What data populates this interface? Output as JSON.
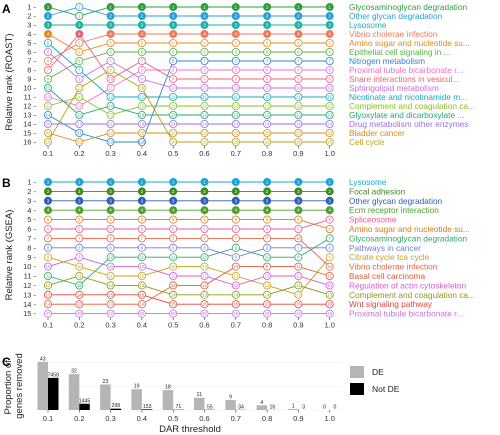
{
  "chart_data": [
    {
      "panel": "A",
      "type": "line",
      "ylabel": "Relative rank (ROAST)",
      "x": [
        "0.1",
        "0.2",
        "0.3",
        "0.4",
        "0.5",
        "0.6",
        "0.7",
        "0.8",
        "0.9",
        "1.0"
      ],
      "y_ticks": [
        "1",
        "2",
        "3",
        "4",
        "5",
        "6",
        "7",
        "8",
        "9",
        "10",
        "11",
        "12",
        "13",
        "14",
        "15",
        "16"
      ],
      "ylim": [
        1,
        16
      ],
      "grid": true,
      "series": [
        {
          "name": "Glycosaminoglycan degradation",
          "color": "#2e9e3e",
          "values": [
            1,
            2,
            1,
            1,
            1,
            1,
            1,
            1,
            1,
            1
          ],
          "labels": [
            1,
            1,
            1,
            1,
            1,
            1,
            1,
            1,
            1,
            1
          ]
        },
        {
          "name": "Other glycan degradation",
          "color": "#2a9fd6",
          "values": [
            2,
            1,
            2,
            2,
            2,
            2,
            2,
            2,
            2,
            2
          ],
          "labels": [
            2,
            2,
            2,
            2,
            2,
            2,
            2,
            2,
            2,
            2
          ]
        },
        {
          "name": "Lysosome",
          "color": "#1eb1a6",
          "values": [
            3,
            3,
            3,
            3,
            3,
            3,
            3,
            3,
            3,
            3
          ],
          "labels": [
            3,
            3,
            3,
            3,
            3,
            3,
            3,
            3,
            3,
            3
          ]
        },
        {
          "name": "Vibrio cholerae infection",
          "color": "#f07a5c",
          "values": [
            7,
            5,
            4,
            4,
            4,
            4,
            4,
            4,
            4,
            4
          ],
          "labels": [
            8,
            5,
            4,
            4,
            4,
            4,
            4,
            4,
            4,
            4
          ]
        },
        {
          "name": "Amino sugar and nucleotide su...",
          "color": "#e88a1a",
          "values": [
            4,
            6,
            5,
            5,
            5,
            5,
            5,
            5,
            5,
            5
          ],
          "labels": [
            4,
            6,
            5,
            5,
            5,
            5,
            5,
            5,
            5,
            5
          ]
        },
        {
          "name": "Epithelial cell signaling in ...",
          "color": "#55b33d",
          "values": [
            9,
            7,
            6,
            6,
            6,
            6,
            6,
            6,
            6,
            6
          ],
          "labels": [
            9,
            8,
            6,
            6,
            6,
            6,
            6,
            6,
            6,
            6
          ]
        },
        {
          "name": "Nitrogen metabolism",
          "color": "#2d86c9",
          "values": [
            13,
            15,
            16,
            16,
            7,
            7,
            7,
            7,
            7,
            7
          ],
          "labels": [
            14,
            31,
            53,
            129,
            6,
            7,
            7,
            7,
            7,
            7
          ]
        },
        {
          "name": "Proximal tubule bicarbonate r...",
          "color": "#ef6fd0",
          "values": [
            11,
            12,
            10,
            8,
            8,
            8,
            8,
            8,
            8,
            8
          ],
          "labels": [
            10,
            11,
            11,
            9,
            8,
            8,
            8,
            8,
            8,
            8
          ]
        },
        {
          "name": "Snare interactions in vesicul...",
          "color": "#e8647c",
          "values": [
            8,
            4,
            9,
            7,
            9,
            9,
            9,
            9,
            9,
            9
          ],
          "labels": [
            7,
            4,
            10,
            7,
            9,
            9,
            9,
            9,
            9,
            9
          ]
        },
        {
          "name": "Sphingolipid metabolism",
          "color": "#c56fe3",
          "values": [
            6,
            9,
            7,
            9,
            10,
            10,
            10,
            10,
            10,
            10
          ],
          "labels": [
            6,
            9,
            7,
            8,
            10,
            10,
            10,
            10,
            10,
            10
          ]
        },
        {
          "name": "Nicotinate and nicotinamide m...",
          "color": "#1aa8b8",
          "values": [
            5,
            8,
            11,
            11,
            11,
            11,
            11,
            11,
            11,
            11
          ],
          "labels": [
            5,
            7,
            12,
            11,
            11,
            11,
            11,
            11,
            11,
            11
          ]
        },
        {
          "name": "Complement and coagulation ca...",
          "color": "#8bbf2a",
          "values": [
            12,
            11,
            13,
            12,
            12,
            12,
            12,
            12,
            12,
            12
          ],
          "labels": [
            11,
            10,
            13,
            12,
            12,
            12,
            12,
            12,
            12,
            12
          ]
        },
        {
          "name": "Glyoxylate and dicarboxylate ...",
          "color": "#25a872",
          "values": [
            10,
            13,
            12,
            13,
            13,
            13,
            13,
            13,
            13,
            13
          ],
          "labels": [
            12,
            13,
            14,
            13,
            13,
            13,
            13,
            13,
            13,
            13
          ]
        },
        {
          "name": "Drug metabolism other enzymes",
          "color": "#9a6fe6",
          "values": [
            14,
            14,
            14,
            14,
            14,
            14,
            14,
            14,
            14,
            14
          ],
          "labels": [
            20,
            17,
            21,
            14,
            14,
            14,
            14,
            14,
            14,
            14
          ]
        },
        {
          "name": "Bladder cancer",
          "color": "#d38e20",
          "values": [
            15,
            16,
            15,
            15,
            15,
            15,
            15,
            15,
            15,
            15
          ],
          "labels": [
            32,
            32,
            22,
            22,
            22,
            22,
            22,
            22,
            22,
            22
          ]
        },
        {
          "name": "Cell cycle",
          "color": "#b5a21f",
          "values": [
            16,
            10,
            8,
            10,
            16,
            16,
            16,
            16,
            16,
            16
          ],
          "labels": [
            15,
            12,
            9,
            10,
            16,
            16,
            16,
            16,
            16,
            16
          ]
        }
      ]
    },
    {
      "panel": "B",
      "type": "line",
      "ylabel": "Relative rank (GSEA)",
      "x": [
        "0.1",
        "0.2",
        "0.3",
        "0.4",
        "0.5",
        "0.6",
        "0.7",
        "0.8",
        "0.9",
        "1.0"
      ],
      "y_ticks": [
        "1",
        "2",
        "3",
        "4",
        "5",
        "6",
        "7",
        "8",
        "9",
        "10",
        "11",
        "12",
        "13",
        "14",
        "15"
      ],
      "ylim": [
        1,
        15
      ],
      "grid": true,
      "series": [
        {
          "name": "Lysosome",
          "color": "#1ba3d8",
          "values": [
            1,
            1,
            1,
            1,
            1,
            1,
            1,
            1,
            1,
            1
          ],
          "labels": [
            1,
            1,
            1,
            1,
            1,
            1,
            1,
            1,
            1,
            1
          ]
        },
        {
          "name": "Focal adhesion",
          "color": "#3b8d1f",
          "values": [
            2,
            2,
            2,
            2,
            2,
            2,
            2,
            2,
            2,
            2
          ],
          "labels": [
            2,
            2,
            2,
            2,
            2,
            2,
            2,
            2,
            2,
            2
          ]
        },
        {
          "name": "Other glycan degradation",
          "color": "#2c5fb8",
          "values": [
            3,
            3,
            3,
            3,
            3,
            3,
            3,
            3,
            3,
            3
          ],
          "labels": [
            3,
            3,
            3,
            3,
            3,
            3,
            3,
            3,
            3,
            3
          ]
        },
        {
          "name": "Ecm receptor interaction",
          "color": "#4ea12a",
          "values": [
            4,
            4,
            4,
            4,
            4,
            4,
            4,
            4,
            4,
            4
          ],
          "labels": [
            4,
            4,
            4,
            4,
            4,
            4,
            4,
            4,
            4,
            4
          ]
        },
        {
          "name": "Spliceosome",
          "color": "#e45f9a",
          "values": [
            6,
            6,
            6,
            6,
            6,
            6,
            6,
            6,
            6,
            5
          ],
          "labels": [
            6,
            6,
            6,
            6,
            6,
            6,
            6,
            6,
            6,
            5
          ]
        },
        {
          "name": "Amino sugar and nucleotide su...",
          "color": "#d97a16",
          "values": [
            5,
            5,
            5,
            5,
            5,
            5,
            5,
            5,
            5,
            6
          ],
          "labels": [
            5,
            5,
            5,
            5,
            5,
            5,
            5,
            5,
            5,
            6
          ]
        },
        {
          "name": "Glycosaminoglycan degradation",
          "color": "#2ea86e",
          "values": [
            11,
            12,
            9,
            9,
            9,
            9,
            8,
            9,
            9,
            7
          ],
          "labels": [
            11,
            12,
            12,
            11,
            11,
            11,
            9,
            10,
            8,
            7
          ]
        },
        {
          "name": "Pathways in cancer",
          "color": "#6d7fd6",
          "values": [
            8,
            8,
            8,
            8,
            8,
            8,
            9,
            8,
            8,
            8
          ],
          "labels": [
            8,
            8,
            8,
            8,
            8,
            8,
            9,
            8,
            7,
            8
          ]
        },
        {
          "name": "Citrate cycle tca cycle",
          "color": "#c9a21a",
          "values": [
            9,
            10,
            11,
            11,
            10,
            10,
            11,
            12,
            13,
            9
          ],
          "labels": [
            9,
            10,
            11,
            10,
            10,
            10,
            13,
            12,
            13,
            9
          ]
        },
        {
          "name": "Vibrio cholerae infection",
          "color": "#f0623f",
          "values": [
            7,
            7,
            7,
            7,
            7,
            7,
            7,
            7,
            7,
            10
          ],
          "labels": [
            7,
            7,
            7,
            7,
            7,
            7,
            7,
            7,
            10,
            10
          ]
        },
        {
          "name": "Basal cell carcinoma",
          "color": "#e25a3a",
          "values": [
            14,
            14,
            14,
            14,
            12,
            12,
            10,
            10,
            10,
            11
          ],
          "labels": [
            14,
            13,
            13,
            14,
            13,
            14,
            10,
            9,
            11,
            11
          ]
        },
        {
          "name": "Regulation of actin cytoskeleton",
          "color": "#d35fd6",
          "values": [
            10,
            9,
            10,
            10,
            11,
            11,
            12,
            11,
            11,
            12
          ],
          "labels": [
            10,
            9,
            10,
            12,
            12,
            12,
            12,
            13,
            12,
            12
          ]
        },
        {
          "name": "Complement and coagulation ca...",
          "color": "#8a9a1f",
          "values": [
            12,
            11,
            12,
            12,
            13,
            13,
            13,
            13,
            12,
            13
          ],
          "labels": [
            12,
            11,
            14,
            13,
            14,
            13,
            14,
            14,
            14,
            13
          ]
        },
        {
          "name": "Wnt signaling pathway",
          "color": "#e4453d",
          "values": [
            13,
            13,
            13,
            13,
            14,
            14,
            14,
            14,
            14,
            14
          ],
          "labels": [
            13,
            14,
            15,
            15,
            15,
            15,
            15,
            15,
            15,
            19
          ]
        },
        {
          "name": "Proximal tubule bicarbonate r...",
          "color": "#c374e0",
          "values": [
            15,
            15,
            15,
            15,
            15,
            15,
            15,
            15,
            15,
            15
          ],
          "labels": [
            47,
            49,
            52,
            53,
            59,
            50,
            19,
            16,
            16,
            16
          ]
        }
      ]
    },
    {
      "panel": "C",
      "type": "bar",
      "ylabel": "Proportion of genes removed",
      "xlabel": "DAR threshold",
      "categories": [
        "0.1",
        "0.2",
        "0.3",
        "0.4",
        "0.5",
        "0.6",
        "0.7",
        "0.8",
        "0.9",
        "1.0"
      ],
      "ylim": [
        0,
        0.55
      ],
      "series": [
        {
          "name": "DE",
          "color": "#b5b5b5",
          "values": [
            0.51,
            0.38,
            0.27,
            0.22,
            0.21,
            0.13,
            0.105,
            0.05,
            0.012,
            0.0
          ],
          "labels": [
            "43",
            "32",
            "23",
            "19",
            "18",
            "11",
            "9",
            "4",
            "1",
            "0"
          ]
        },
        {
          "name": "Not DE",
          "color": "#000000",
          "values": [
            0.34,
            0.066,
            0.014,
            0.007,
            0.0032,
            0.0025,
            0.0015,
            0.0007,
            0.00014,
            0.0
          ],
          "labels": [
            "7458",
            "1445",
            "298",
            "153",
            "71",
            "55",
            "34",
            "16",
            "3",
            "0"
          ]
        }
      ]
    }
  ]
}
